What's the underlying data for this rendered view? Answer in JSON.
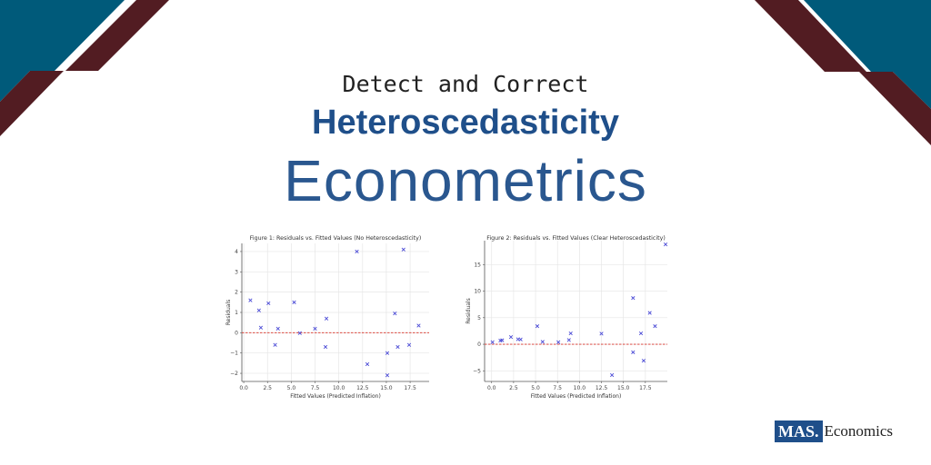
{
  "header": {
    "line1": "Detect and Correct",
    "line2": "Heteroscedasticity",
    "line3": "Econometrics"
  },
  "brand": {
    "logo_mark": "MAS.",
    "logo_text": "Economics"
  },
  "colors": {
    "teal": "#005a7a",
    "maroon": "#521c22",
    "title_blue": "#1f4f8a",
    "marker": "#4b4bd6",
    "zero_line": "#d9342b"
  },
  "chart_data": [
    {
      "type": "scatter",
      "title": "Figure 1: Residuals vs. Fitted Values (No Heteroscedasticity)",
      "xlabel": "Fitted Values (Predicted Inflation)",
      "ylabel": "Residuals",
      "xlim": [
        -0.2,
        19.5
      ],
      "ylim": [
        -2.4,
        4.4
      ],
      "xticks": [
        0.0,
        2.5,
        5.0,
        7.5,
        10.0,
        12.5,
        15.0,
        17.5
      ],
      "xtick_labels": [
        "0.0",
        "2.5",
        "5.0",
        "7.5",
        "10.0",
        "12.5",
        "15.0",
        "17.5"
      ],
      "yticks": [
        -2,
        -1,
        0,
        1,
        2,
        3,
        4
      ],
      "ytick_labels": [
        "−2",
        "−1",
        "0",
        "1",
        "2",
        "3",
        "4"
      ],
      "grid": true,
      "reference_line": {
        "y": 0,
        "style": "dashed",
        "color": "red"
      },
      "marker": "x",
      "x": [
        0.7,
        1.6,
        1.8,
        2.6,
        3.3,
        3.6,
        5.3,
        5.9,
        7.5,
        8.6,
        8.7,
        11.9,
        13.0,
        15.1,
        15.1,
        15.9,
        16.2,
        16.8,
        17.4,
        18.4
      ],
      "y": [
        1.6,
        1.1,
        0.25,
        1.45,
        -0.6,
        0.2,
        1.5,
        -0.02,
        0.2,
        -0.7,
        0.7,
        4.0,
        -1.55,
        -1.0,
        -2.1,
        0.95,
        -0.7,
        4.1,
        -0.6,
        0.35
      ]
    },
    {
      "type": "scatter",
      "title": "Figure 2: Residuals vs. Fitted Values (Clear Heteroscedasticity)",
      "xlabel": "Fitted Values (Predicted Inflation)",
      "ylabel": "Residuals",
      "xlim": [
        -0.8,
        20.0
      ],
      "ylim": [
        -7.0,
        19.5
      ],
      "xticks": [
        0.0,
        2.5,
        5.0,
        7.5,
        10.0,
        12.5,
        15.0,
        17.5
      ],
      "xtick_labels": [
        "0.0",
        "2.5",
        "5.0",
        "7.5",
        "10.0",
        "12.5",
        "15.0",
        "17.5"
      ],
      "yticks": [
        -5,
        0,
        5,
        10,
        15
      ],
      "ytick_labels": [
        "−5",
        "0",
        "5",
        "10",
        "15"
      ],
      "grid": true,
      "reference_line": {
        "y": 0,
        "style": "dashed",
        "color": "red"
      },
      "marker": "x",
      "x": [
        0.1,
        1.0,
        1.2,
        2.2,
        3.0,
        3.3,
        5.2,
        5.8,
        7.6,
        8.8,
        9.0,
        12.5,
        13.7,
        16.1,
        16.1,
        17.0,
        17.3,
        18.0,
        18.6,
        19.8
      ],
      "y": [
        0.4,
        0.7,
        0.75,
        1.35,
        0.95,
        0.9,
        3.4,
        0.45,
        0.4,
        0.8,
        2.05,
        2.0,
        -5.8,
        8.7,
        -1.5,
        2.05,
        -3.1,
        5.9,
        3.4,
        18.8
      ]
    }
  ]
}
